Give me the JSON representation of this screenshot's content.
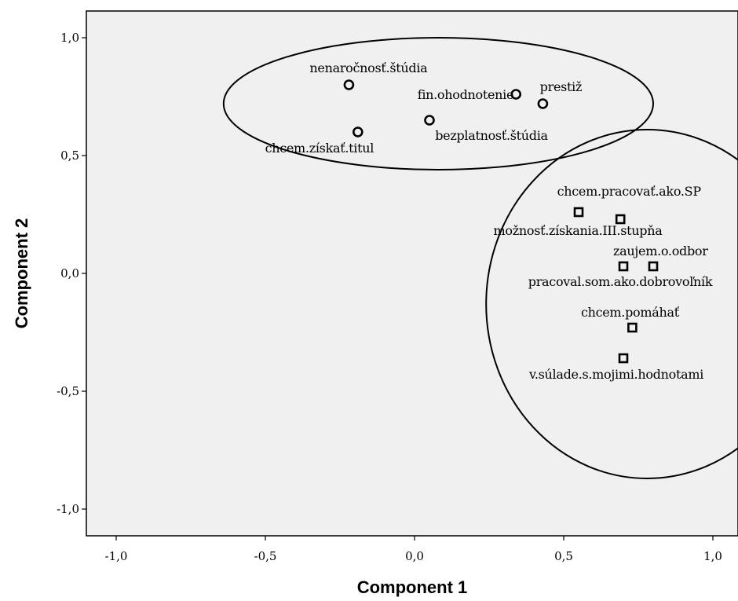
{
  "chart_data": {
    "type": "scatter",
    "xlabel": "Component 1",
    "ylabel": "Component 2",
    "xlim": [
      -1.1,
      1.05
    ],
    "ylim": [
      -1.1,
      1.12
    ],
    "x_ticks": [
      -1.0,
      -0.5,
      0.0,
      0.5,
      1.0
    ],
    "y_ticks": [
      -1.0,
      -0.5,
      0.0,
      0.5,
      1.0
    ],
    "x_tick_labels": [
      "-1,0",
      "-0,5",
      "0,0",
      "0,5",
      "1,0"
    ],
    "y_tick_labels": [
      "-1,0",
      "-0,5",
      "0,0",
      "0,5",
      "1,0"
    ],
    "grid": false,
    "background": "#f0f0f0",
    "series": [
      {
        "marker": "circle",
        "points": [
          {
            "label": "nenaročnosť.štúdia",
            "x": -0.22,
            "y": 0.8
          },
          {
            "label": "fin.ohodnotenie",
            "x": 0.34,
            "y": 0.76
          },
          {
            "label": "prestiž",
            "x": 0.43,
            "y": 0.72
          },
          {
            "label": "bezplatnosť.štúdia",
            "x": 0.05,
            "y": 0.65
          },
          {
            "label": "chcem.získať.titul",
            "x": -0.19,
            "y": 0.6
          }
        ]
      },
      {
        "marker": "square",
        "points": [
          {
            "label": "chcem.pracovať.ako.SP",
            "x": 0.69,
            "y": 0.23
          },
          {
            "label": "možnosť.získania.III.stupňa",
            "x": 0.55,
            "y": 0.26
          },
          {
            "label": "zaujem.o.odbor",
            "x": 0.8,
            "y": 0.03
          },
          {
            "label": "pracoval.som.ako.dobrovoľník",
            "x": 0.7,
            "y": 0.03
          },
          {
            "label": "chcem.pomáhať",
            "x": 0.73,
            "y": -0.23
          },
          {
            "label": "v.súlade.s.mojimi.hodnotami",
            "x": 0.7,
            "y": -0.36
          }
        ]
      }
    ],
    "annotations": [
      {
        "shape": "ellipse",
        "cx": 0.08,
        "cy": 0.72,
        "rx": 0.72,
        "ry": 0.28
      },
      {
        "shape": "ellipse",
        "cx": 0.78,
        "cy": -0.13,
        "rx": 0.54,
        "ry": 0.74
      }
    ]
  }
}
